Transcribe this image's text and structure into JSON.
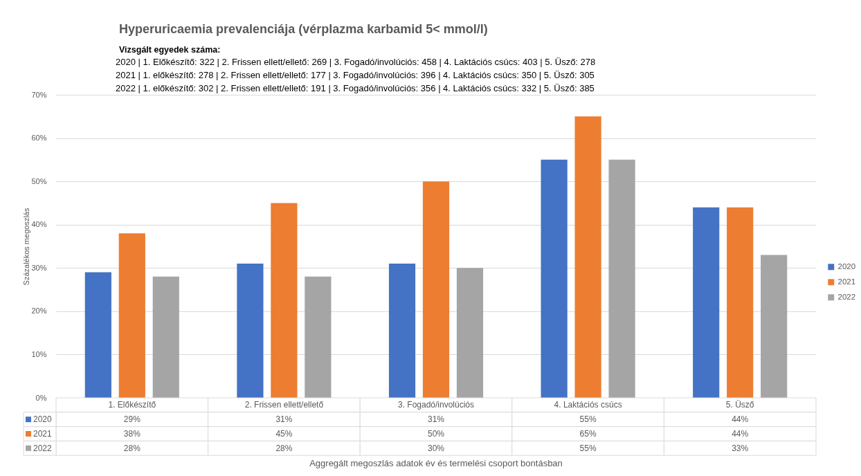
{
  "chart_data": {
    "type": "bar",
    "title": "Hyperuricaemia prevalenciája (vérplazma karbamid 5< mmol/l)",
    "subtitle": "Vizsgált egyedek száma:",
    "annotations": [
      "2020 | 1. Előkészítő: 322 | 2. Frissen ellett/ellető: 269 | 3. Fogadó/involúciós: 458 | 4. Laktációs csúcs: 403 | 5. Üsző: 278",
      "2021 | 1. előkészítő: 278 | 2. Frissen ellett/ellető: 177 | 3. Fogadó/involúciós: 396 | 4. Laktációs csúcs: 350 | 5. Üsző: 305",
      "2022 | 1. előkészítő: 302 | 2. Frissen ellett/ellető: 191 | 3. Fogadó/involúciós: 356 | 4. Laktációs csúcs: 332 | 5. Üsző: 385",
      "Aggregált megoszlás adatok év és termelési csoport bontásban"
    ],
    "ylabel": "Százalékos megoszlás",
    "categories": [
      "1. Előkészítő",
      "2. Frissen ellett/ellető",
      "3. Fogadó/involúciós",
      "4. Laktációs csúcs",
      "5. Üsző"
    ],
    "series": [
      {
        "name": "2020",
        "color": "#4472c4",
        "values": [
          29,
          31,
          31,
          55,
          44
        ],
        "value_labels": [
          "29%",
          "31%",
          "31%",
          "55%",
          "44%"
        ]
      },
      {
        "name": "2021",
        "color": "#ed7d31",
        "values": [
          38,
          45,
          50,
          65,
          44
        ],
        "value_labels": [
          "38%",
          "45%",
          "50%",
          "65%",
          "44%"
        ]
      },
      {
        "name": "2022",
        "color": "#a5a5a5",
        "values": [
          28,
          28,
          30,
          55,
          33
        ],
        "value_labels": [
          "28%",
          "28%",
          "30%",
          "55%",
          "33%"
        ]
      }
    ],
    "ylim": [
      0,
      70
    ],
    "yticks": [
      {
        "value": 0,
        "label": "0%"
      },
      {
        "value": 10,
        "label": "10%"
      },
      {
        "value": 20,
        "label": "20%"
      },
      {
        "value": 30,
        "label": "30%"
      },
      {
        "value": 40,
        "label": "40%"
      },
      {
        "value": 50,
        "label": "50%"
      },
      {
        "value": 60,
        "label": "60%"
      },
      {
        "value": 70,
        "label": "70%"
      }
    ],
    "grid": "y",
    "legend": "right"
  }
}
